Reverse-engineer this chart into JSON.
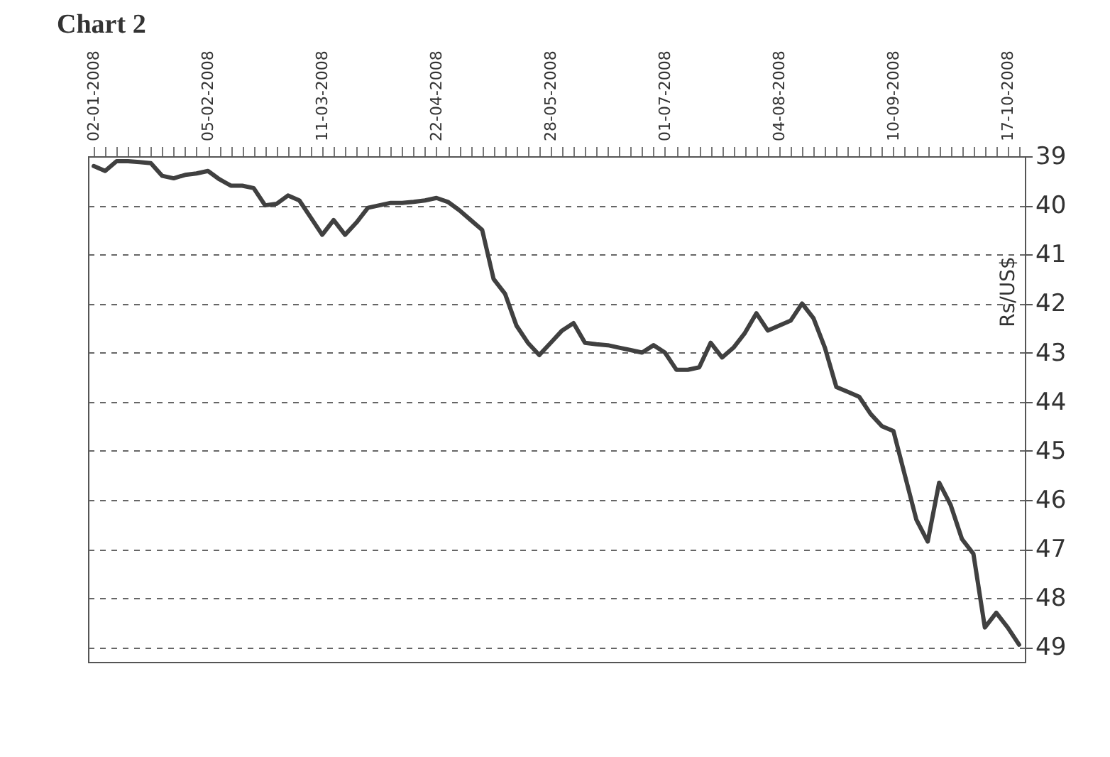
{
  "chart_data": {
    "type": "line",
    "title": "Chart 2",
    "y2label": "Rs/US$",
    "categories": [
      "02-01-2008",
      null,
      null,
      null,
      null,
      null,
      null,
      null,
      null,
      null,
      "05-02-2008",
      null,
      null,
      null,
      null,
      null,
      null,
      null,
      null,
      null,
      "11-03-2008",
      null,
      null,
      null,
      null,
      null,
      null,
      null,
      null,
      null,
      "22-04-2008",
      null,
      null,
      null,
      null,
      null,
      null,
      null,
      null,
      null,
      "28-05-2008",
      null,
      null,
      null,
      null,
      null,
      null,
      null,
      null,
      null,
      "01-07-2008",
      null,
      null,
      null,
      null,
      null,
      null,
      null,
      null,
      null,
      "04-08-2008",
      null,
      null,
      null,
      null,
      null,
      null,
      null,
      null,
      null,
      "10-09-2008",
      null,
      null,
      null,
      null,
      null,
      null,
      null,
      null,
      null,
      "17-10-2008",
      null
    ],
    "series": [
      {
        "color": "#404040",
        "axis": "y2",
        "values": [
          39.2,
          39.3,
          39.1,
          39.1,
          39.12,
          39.14,
          39.4,
          39.45,
          39.38,
          39.35,
          39.3,
          39.47,
          39.6,
          39.6,
          39.65,
          40.0,
          39.97,
          39.8,
          39.9,
          40.25,
          40.6,
          40.3,
          40.6,
          40.35,
          40.05,
          40.0,
          39.95,
          39.95,
          39.93,
          39.9,
          39.85,
          39.93,
          40.1,
          40.3,
          40.5,
          41.5,
          41.8,
          42.45,
          42.8,
          43.05,
          42.8,
          42.55,
          42.4,
          42.8,
          42.83,
          42.85,
          42.9,
          42.95,
          43.0,
          42.85,
          43.0,
          43.35,
          43.35,
          43.3,
          42.8,
          43.1,
          42.9,
          42.6,
          42.2,
          42.55,
          42.45,
          42.35,
          42.0,
          42.3,
          42.9,
          43.7,
          43.8,
          43.9,
          44.25,
          44.5,
          44.6,
          45.5,
          46.4,
          46.85,
          45.65,
          46.1,
          46.8,
          47.1,
          48.6,
          48.3,
          48.6,
          48.95
        ]
      }
    ],
    "y2lim": [
      49.3,
      39
    ],
    "y2ticks": [
      39,
      40,
      41,
      42,
      43,
      44,
      45,
      46,
      47,
      48,
      49
    ],
    "grid": "y",
    "line_style": "solid"
  }
}
